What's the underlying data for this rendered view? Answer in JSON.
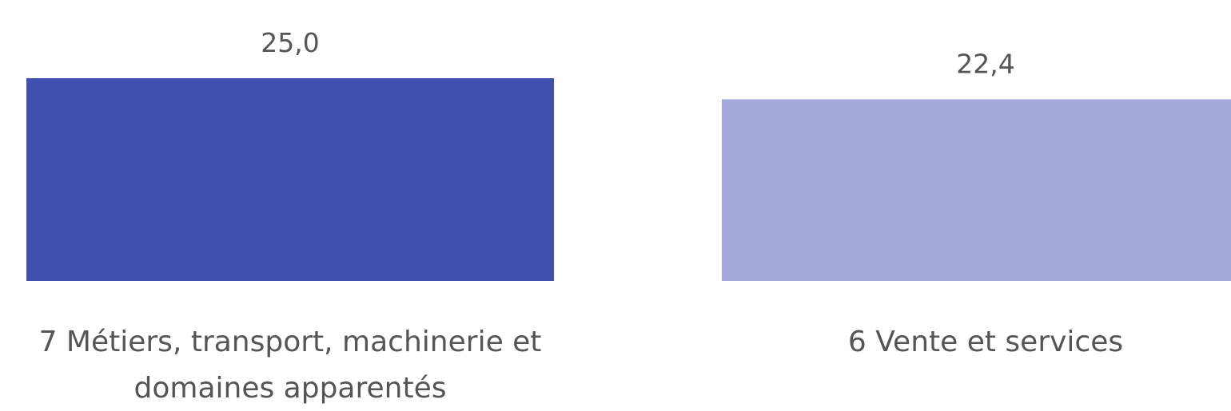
{
  "chart_data": {
    "type": "bar",
    "categories": [
      [
        "7 Métiers, transport, machinerie et",
        "domaines apparentés"
      ],
      [
        "6 Vente et services"
      ]
    ],
    "values": [
      25.0,
      22.4
    ],
    "value_labels": [
      "25,0",
      "22,4"
    ],
    "colors": [
      "#4050b0",
      "#a2a8d8"
    ],
    "title": "",
    "xlabel": "",
    "ylabel": "",
    "ylim": [
      0,
      25.0
    ]
  }
}
